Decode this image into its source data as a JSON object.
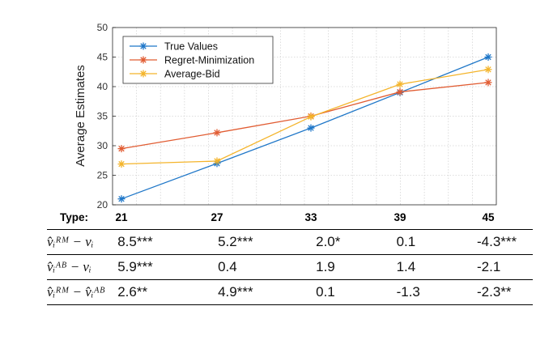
{
  "chart_data": {
    "type": "line",
    "title": "",
    "xlabel": "Type:",
    "ylabel": "Average Estimates",
    "categories": [
      "21",
      "27",
      "33",
      "39",
      "45"
    ],
    "ylim": [
      20,
      50
    ],
    "yticks": [
      20,
      25,
      30,
      35,
      40,
      45,
      50
    ],
    "grid": true,
    "legend_position": "top-left",
    "series": [
      {
        "name": "True Values",
        "color": "#1f77c8",
        "values": [
          21.0,
          27.0,
          33.0,
          39.0,
          45.0
        ]
      },
      {
        "name": "Regret-Minimization",
        "color": "#e15c32",
        "values": [
          29.5,
          32.2,
          35.0,
          39.1,
          40.7
        ]
      },
      {
        "name": "Average-Bid",
        "color": "#f4b42a",
        "values": [
          26.9,
          27.4,
          34.9,
          40.4,
          42.9
        ]
      }
    ]
  },
  "table": {
    "rows": [
      {
        "label": "v̂ᵢᴿᴹ − vᵢ",
        "values": [
          "8.5***",
          "5.2***",
          "2.0*",
          "0.1",
          "-4.3***"
        ]
      },
      {
        "label": "v̂ᵢᴬᴮ − vᵢ",
        "values": [
          "5.9***",
          "0.4",
          "1.9",
          "1.4",
          "-2.1"
        ]
      },
      {
        "label": "v̂ᵢᴿᴹ − v̂ᵢᴬᴮ",
        "values": [
          "2.6**",
          "4.9***",
          "0.1",
          "-1.3",
          "-2.3**"
        ]
      }
    ]
  }
}
